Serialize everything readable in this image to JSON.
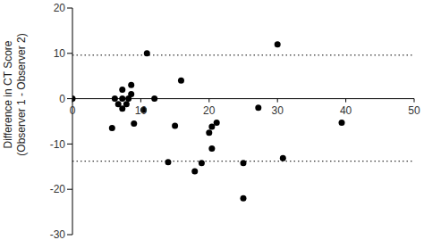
{
  "chart_data": {
    "type": "scatter",
    "y_label": "Difference in CT Score\n(Observer 1 - Observer 2)",
    "x": [
      0,
      10.9,
      5.8,
      6.2,
      6.7,
      7.3,
      7.3,
      7.3,
      7.9,
      8.2,
      8.6,
      8.6,
      9,
      10.4,
      12,
      15.9,
      15,
      14,
      18.9,
      17.9,
      20,
      20.4,
      21.1,
      20.4,
      27.2,
      25,
      25,
      30,
      30.8,
      39.4
    ],
    "values": [
      0,
      10,
      -6.5,
      0,
      -1.2,
      2,
      0,
      -2.2,
      -1.2,
      0,
      3,
      1,
      -5.5,
      -2.5,
      0,
      4,
      -6,
      -14,
      -14.2,
      -16,
      -7.5,
      -6.2,
      -5.3,
      -11,
      -2,
      -14.2,
      -22,
      12,
      -13.1,
      -5.3
    ],
    "color": "#000000",
    "marker": "circle",
    "limits_of_agreement": [
      9.6,
      -13.8
    ],
    "xlim": [
      0,
      50
    ],
    "ylim": [
      -30,
      20
    ],
    "xticks": [
      0,
      10,
      20,
      30,
      40,
      50
    ],
    "yticks": [
      -30,
      -20,
      -10,
      0,
      10,
      20
    ],
    "grid": false
  }
}
